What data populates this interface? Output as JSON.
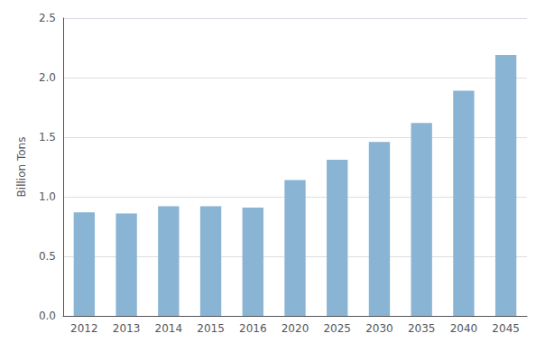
{
  "chart_data": {
    "type": "bar",
    "ylabel": "Billion Tons",
    "categories": [
      "2012",
      "2013",
      "2014",
      "2015",
      "2016",
      "2020",
      "2025",
      "2030",
      "2035",
      "2040",
      "2045"
    ],
    "values": [
      0.87,
      0.86,
      0.92,
      0.92,
      0.91,
      1.14,
      1.31,
      1.46,
      1.62,
      1.89,
      2.19
    ],
    "color": "#8ab4d4",
    "ylim": [
      0.0,
      2.5
    ],
    "yticks": [
      0.0,
      0.5,
      1.0,
      1.5,
      2.0,
      2.5
    ],
    "yticks_labels": null,
    "grid": true
  }
}
